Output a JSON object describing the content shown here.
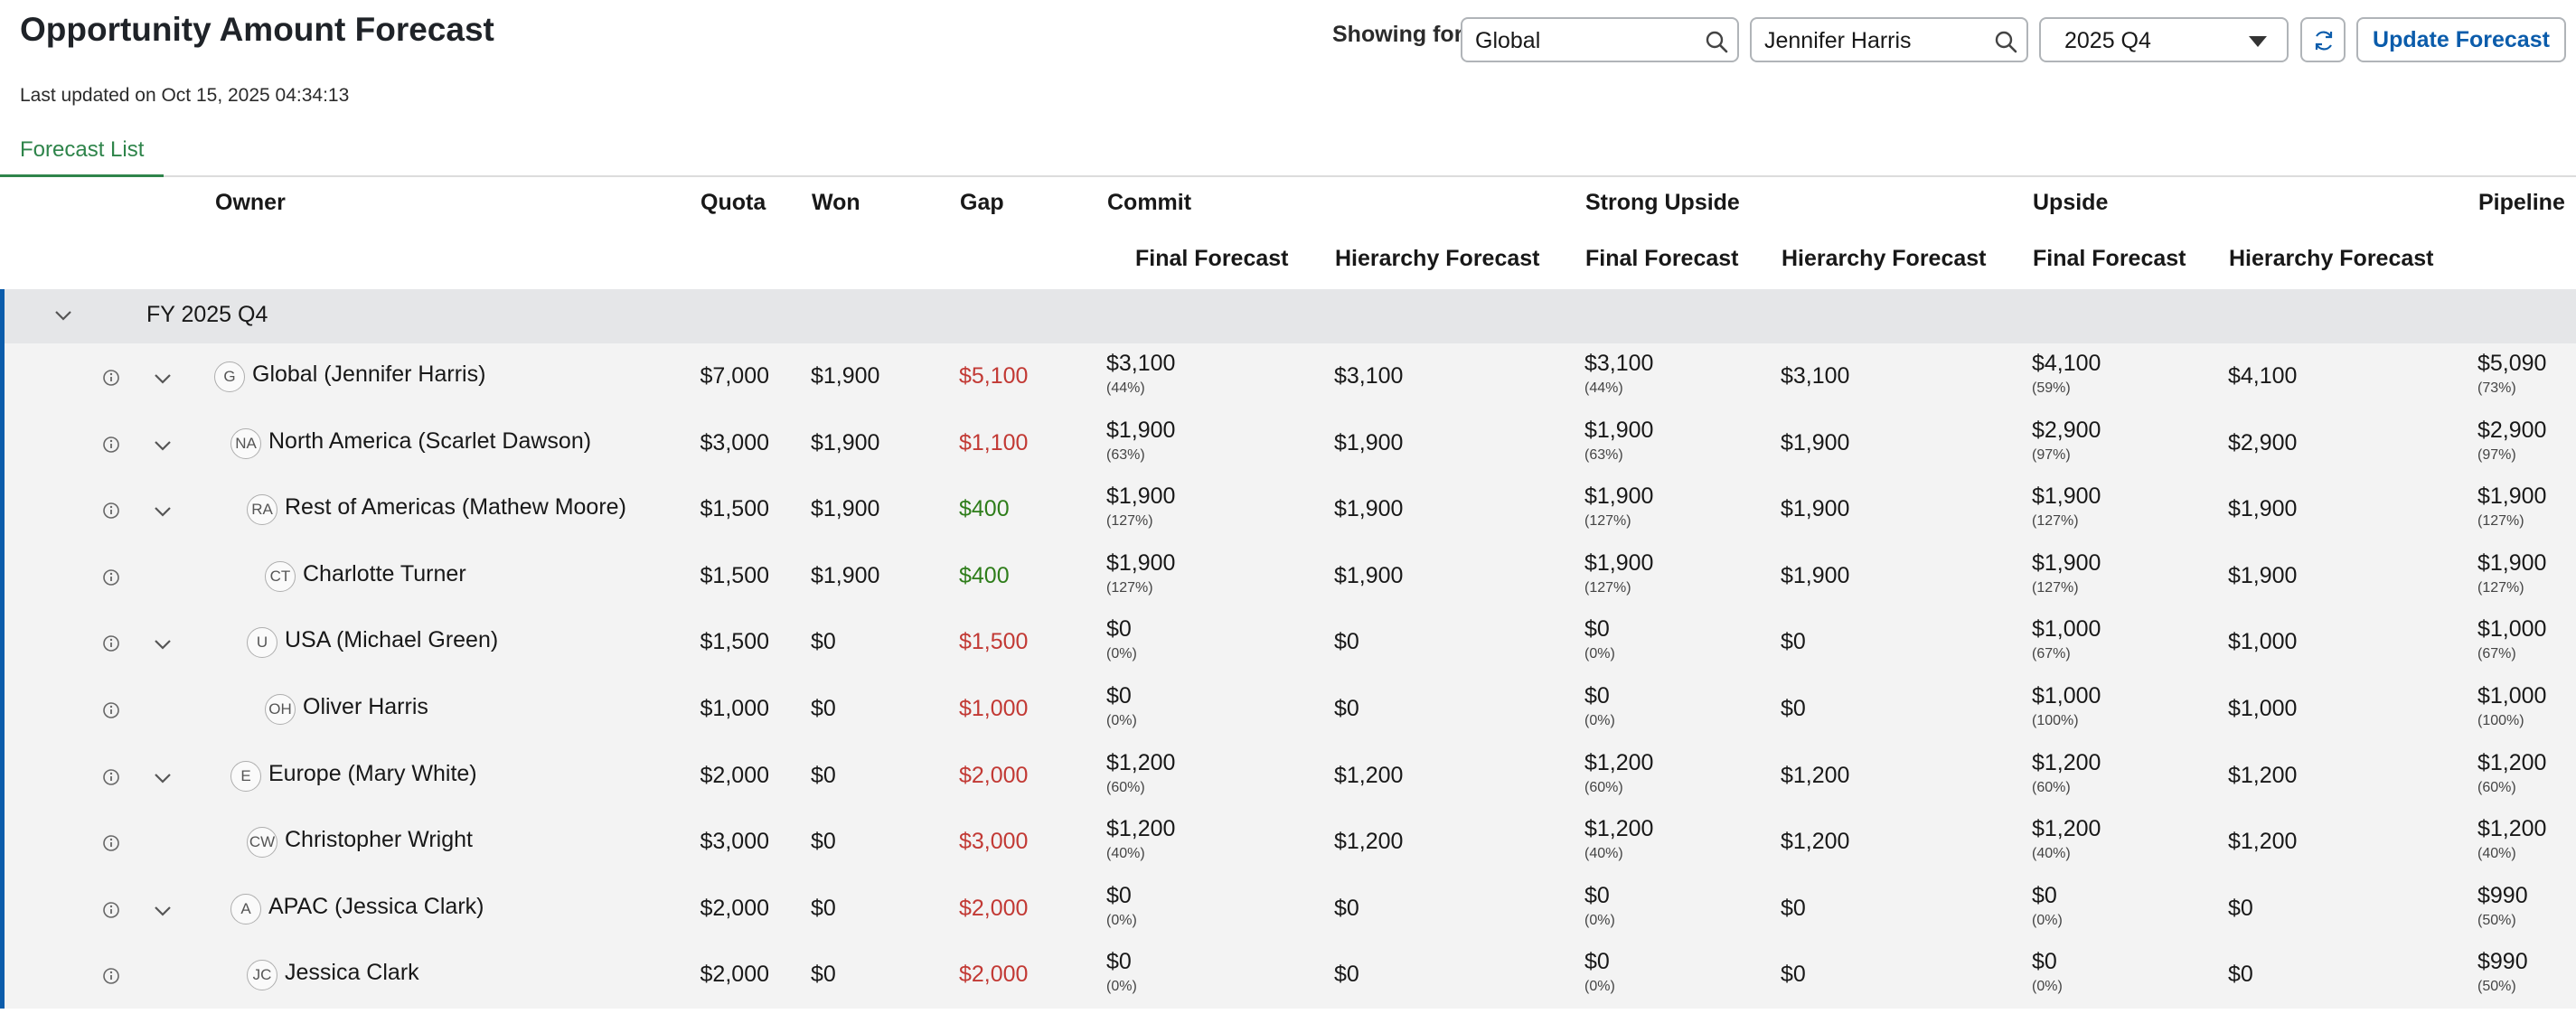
{
  "title": "Opportunity Amount Forecast",
  "last_updated": "Last updated on Oct 15, 2025 04:34:13",
  "filters": {
    "showing_for_label": "Showing for",
    "territory_value": "Global",
    "user_value": "Jennifer Harris",
    "period_value": "2025 Q4",
    "update_label": "Update Forecast"
  },
  "tabs": [
    {
      "label": "Forecast List"
    }
  ],
  "columns": {
    "owner": "Owner",
    "quota": "Quota",
    "won": "Won",
    "gap": "Gap",
    "commit": "Commit",
    "strong_upside": "Strong Upside",
    "upside": "Upside",
    "pipeline": "Pipeline",
    "final_forecast": "Final Forecast",
    "hierarchy_forecast": "Hierarchy Forecast"
  },
  "group": {
    "label": "FY 2025 Q4"
  },
  "rows": [
    {
      "initials": "G",
      "owner": "Global (Jennifer Harris)",
      "expandable": true,
      "indent": 0,
      "quota": "$7,000",
      "won": "$1,900",
      "gap": "$5,100",
      "gap_status": "negative",
      "commit_final": "$3,100",
      "commit_final_pct": "(44%)",
      "commit_hier": "$3,100",
      "su_final": "$3,100",
      "su_final_pct": "(44%)",
      "su_hier": "$3,100",
      "up_final": "$4,100",
      "up_final_pct": "(59%)",
      "up_hier": "$4,100",
      "pipeline": "$5,090",
      "pipeline_pct": "(73%)"
    },
    {
      "initials": "NA",
      "owner": "North America (Scarlet Dawson)",
      "expandable": true,
      "indent": 1,
      "quota": "$3,000",
      "won": "$1,900",
      "gap": "$1,100",
      "gap_status": "negative",
      "commit_final": "$1,900",
      "commit_final_pct": "(63%)",
      "commit_hier": "$1,900",
      "su_final": "$1,900",
      "su_final_pct": "(63%)",
      "su_hier": "$1,900",
      "up_final": "$2,900",
      "up_final_pct": "(97%)",
      "up_hier": "$2,900",
      "pipeline": "$2,900",
      "pipeline_pct": "(97%)"
    },
    {
      "initials": "RA",
      "owner": "Rest of Americas (Mathew Moore)",
      "expandable": true,
      "indent": 2,
      "quota": "$1,500",
      "won": "$1,900",
      "gap": "$400",
      "gap_status": "positive",
      "commit_final": "$1,900",
      "commit_final_pct": "(127%)",
      "commit_hier": "$1,900",
      "su_final": "$1,900",
      "su_final_pct": "(127%)",
      "su_hier": "$1,900",
      "up_final": "$1,900",
      "up_final_pct": "(127%)",
      "up_hier": "$1,900",
      "pipeline": "$1,900",
      "pipeline_pct": "(127%)"
    },
    {
      "initials": "CT",
      "owner": "Charlotte Turner",
      "expandable": false,
      "indent": 3,
      "quota": "$1,500",
      "won": "$1,900",
      "gap": "$400",
      "gap_status": "positive",
      "commit_final": "$1,900",
      "commit_final_pct": "(127%)",
      "commit_hier": "$1,900",
      "su_final": "$1,900",
      "su_final_pct": "(127%)",
      "su_hier": "$1,900",
      "up_final": "$1,900",
      "up_final_pct": "(127%)",
      "up_hier": "$1,900",
      "pipeline": "$1,900",
      "pipeline_pct": "(127%)"
    },
    {
      "initials": "U",
      "owner": "USA (Michael Green)",
      "expandable": true,
      "indent": 2,
      "quota": "$1,500",
      "won": "$0",
      "gap": "$1,500",
      "gap_status": "negative",
      "commit_final": "$0",
      "commit_final_pct": "(0%)",
      "commit_hier": "$0",
      "su_final": "$0",
      "su_final_pct": "(0%)",
      "su_hier": "$0",
      "up_final": "$1,000",
      "up_final_pct": "(67%)",
      "up_hier": "$1,000",
      "pipeline": "$1,000",
      "pipeline_pct": "(67%)"
    },
    {
      "initials": "OH",
      "owner": "Oliver Harris",
      "expandable": false,
      "indent": 3,
      "quota": "$1,000",
      "won": "$0",
      "gap": "$1,000",
      "gap_status": "negative",
      "commit_final": "$0",
      "commit_final_pct": "(0%)",
      "commit_hier": "$0",
      "su_final": "$0",
      "su_final_pct": "(0%)",
      "su_hier": "$0",
      "up_final": "$1,000",
      "up_final_pct": "(100%)",
      "up_hier": "$1,000",
      "pipeline": "$1,000",
      "pipeline_pct": "(100%)"
    },
    {
      "initials": "E",
      "owner": "Europe (Mary White)",
      "expandable": true,
      "indent": 1,
      "quota": "$2,000",
      "won": "$0",
      "gap": "$2,000",
      "gap_status": "negative",
      "commit_final": "$1,200",
      "commit_final_pct": "(60%)",
      "commit_hier": "$1,200",
      "su_final": "$1,200",
      "su_final_pct": "(60%)",
      "su_hier": "$1,200",
      "up_final": "$1,200",
      "up_final_pct": "(60%)",
      "up_hier": "$1,200",
      "pipeline": "$1,200",
      "pipeline_pct": "(60%)"
    },
    {
      "initials": "CW",
      "owner": "Christopher Wright",
      "expandable": false,
      "indent": 2,
      "quota": "$3,000",
      "won": "$0",
      "gap": "$3,000",
      "gap_status": "negative",
      "commit_final": "$1,200",
      "commit_final_pct": "(40%)",
      "commit_hier": "$1,200",
      "su_final": "$1,200",
      "su_final_pct": "(40%)",
      "su_hier": "$1,200",
      "up_final": "$1,200",
      "up_final_pct": "(40%)",
      "up_hier": "$1,200",
      "pipeline": "$1,200",
      "pipeline_pct": "(40%)"
    },
    {
      "initials": "A",
      "owner": "APAC (Jessica Clark)",
      "expandable": true,
      "indent": 1,
      "quota": "$2,000",
      "won": "$0",
      "gap": "$2,000",
      "gap_status": "negative",
      "commit_final": "$0",
      "commit_final_pct": "(0%)",
      "commit_hier": "$0",
      "su_final": "$0",
      "su_final_pct": "(0%)",
      "su_hier": "$0",
      "up_final": "$0",
      "up_final_pct": "(0%)",
      "up_hier": "$0",
      "pipeline": "$990",
      "pipeline_pct": "(50%)"
    },
    {
      "initials": "JC",
      "owner": "Jessica Clark",
      "expandable": false,
      "indent": 2,
      "quota": "$2,000",
      "won": "$0",
      "gap": "$2,000",
      "gap_status": "negative",
      "commit_final": "$0",
      "commit_final_pct": "(0%)",
      "commit_hier": "$0",
      "su_final": "$0",
      "su_final_pct": "(0%)",
      "su_hier": "$0",
      "up_final": "$0",
      "up_final_pct": "(0%)",
      "up_hier": "$0",
      "pipeline": "$990",
      "pipeline_pct": "(50%)"
    }
  ],
  "icons": {
    "info": "info-icon",
    "expand": "chevron-down-icon",
    "search": "search-icon",
    "refresh": "refresh-icon",
    "dropdown": "caret-down-icon"
  },
  "colors": {
    "accent_blue": "#0b5cab",
    "tab_green": "#2e844a",
    "gap_negative": "#c23934",
    "gap_positive": "#2e7d1a"
  }
}
